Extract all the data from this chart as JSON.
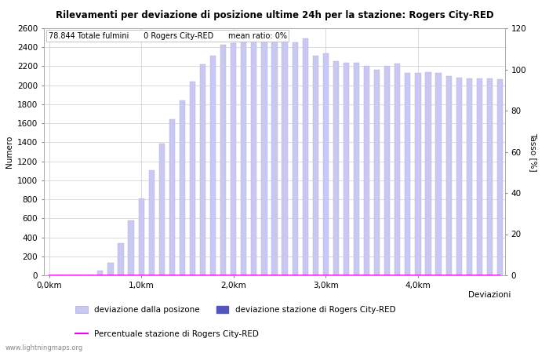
{
  "title": "Rilevamenti per deviazione di posizione ultime 24h per la stazione: Rogers City-RED",
  "subtitle": "78.844 Totale fulmini      0 Rogers City-RED      mean ratio: 0%",
  "ylabel_left": "Numero",
  "ylabel_right": "Tasso [%]",
  "xlabel_right": "Deviazioni",
  "x_tick_labels": [
    "0,0km",
    "1,0km",
    "2,0km",
    "3,0km",
    "4,0km"
  ],
  "x_tick_positions": [
    0,
    9,
    18,
    27,
    36
  ],
  "y_left_ticks": [
    0,
    200,
    400,
    600,
    800,
    1000,
    1200,
    1400,
    1600,
    1800,
    2000,
    2200,
    2400,
    2600
  ],
  "y_right_ticks": [
    0,
    20,
    40,
    60,
    80,
    100,
    120
  ],
  "bar_values": [
    0,
    0,
    0,
    0,
    0,
    50,
    130,
    340,
    580,
    810,
    1110,
    1390,
    1640,
    1840,
    2040,
    2220,
    2310,
    2430,
    2440,
    2450,
    2500,
    2510,
    2510,
    2490,
    2450,
    2490,
    2310,
    2340,
    2250,
    2240,
    2240,
    2200,
    2160,
    2200,
    2230,
    2130,
    2130,
    2140,
    2130,
    2100,
    2080,
    2070,
    2070,
    2070,
    2060
  ],
  "station_bar_values": [
    0,
    0,
    0,
    0,
    0,
    0,
    0,
    0,
    0,
    0,
    0,
    0,
    0,
    0,
    0,
    0,
    0,
    0,
    0,
    0,
    0,
    0,
    0,
    0,
    0,
    0,
    0,
    0,
    0,
    0,
    0,
    0,
    0,
    0,
    0,
    0,
    0,
    0,
    0,
    0,
    0,
    0,
    0,
    0,
    0
  ],
  "percentuale_values": [
    0,
    0,
    0,
    0,
    0,
    0,
    0,
    0,
    0,
    0,
    0,
    0,
    0,
    0,
    0,
    0,
    0,
    0,
    0,
    0,
    0,
    0,
    0,
    0,
    0,
    0,
    0,
    0,
    0,
    0,
    0,
    0,
    0,
    0,
    0,
    0,
    0,
    0,
    0,
    0,
    0,
    0,
    0,
    0,
    0
  ],
  "ylim_left": [
    0,
    2600
  ],
  "ylim_right": [
    0,
    120
  ],
  "bar_color_light": "#c8c8f0",
  "bar_color_dark": "#5555bb",
  "line_color": "#ee00ee",
  "background_color": "#ffffff",
  "grid_color": "#cccccc",
  "watermark": "www.lightningmaps.org",
  "legend_labels": [
    "deviazione dalla posizone",
    "deviazione stazione di Rogers City-RED",
    "Percentuale stazione di Rogers City-RED"
  ],
  "font_size": 7.5,
  "title_font_size": 8.5,
  "subtitle_font_size": 7
}
